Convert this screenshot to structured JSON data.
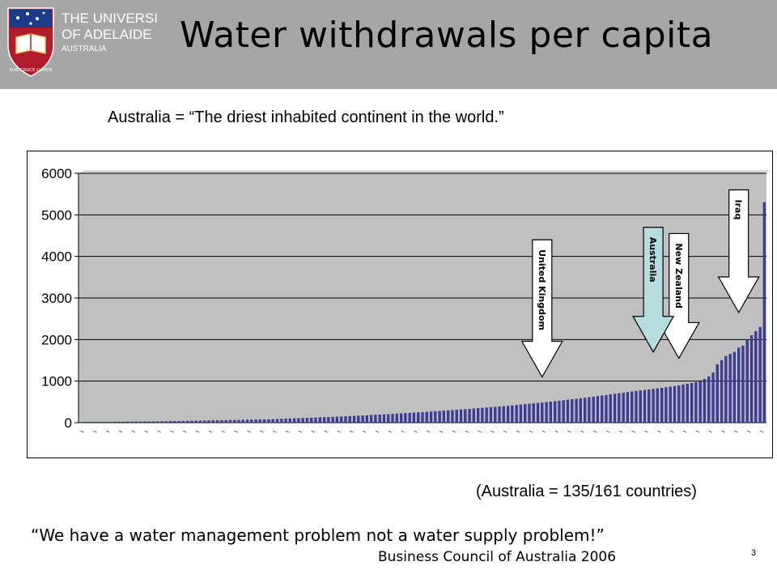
{
  "header": {
    "title": "Water withdrawals per capita",
    "logo": {
      "line1": "THE UNIVERSITY",
      "line2": "OF ADELAIDE",
      "line3": "AUSTRALIA",
      "motto": "SUB CRUCE LUMEN"
    }
  },
  "subtitle": "Australia  =  “The driest inhabited continent in the world.”",
  "rank_note": "(Australia = 135/161 countries)",
  "quote": "“We have a water management problem not a water supply problem!”",
  "quote_source": "Business Council of Australia 2006",
  "slide_number": "3",
  "colors": {
    "header_bg": "#a6a6a6",
    "plot_bg": "#c0c0c0",
    "bar_fill": "#3c3ca0",
    "arrow_white": "#ffffff",
    "arrow_australia": "#b6dde0"
  },
  "chart_data": {
    "type": "bar",
    "title": "",
    "xlabel": "",
    "ylabel": "",
    "ylim": [
      0,
      6000
    ],
    "yticks": [
      0,
      1000,
      2000,
      3000,
      4000,
      5000,
      6000
    ],
    "grid": true,
    "n_categories": 161,
    "values": [
      10,
      12,
      13,
      14,
      15,
      16,
      17,
      18,
      19,
      20,
      20,
      21,
      22,
      23,
      24,
      25,
      26,
      27,
      28,
      29,
      30,
      32,
      34,
      36,
      38,
      40,
      42,
      44,
      46,
      48,
      50,
      52,
      54,
      56,
      58,
      60,
      62,
      64,
      66,
      68,
      70,
      72,
      74,
      76,
      78,
      80,
      84,
      88,
      92,
      96,
      100,
      104,
      108,
      112,
      116,
      120,
      124,
      128,
      132,
      136,
      140,
      145,
      150,
      155,
      160,
      165,
      170,
      175,
      180,
      185,
      190,
      196,
      202,
      208,
      214,
      220,
      226,
      232,
      238,
      244,
      250,
      257,
      264,
      271,
      278,
      285,
      292,
      299,
      306,
      313,
      320,
      328,
      336,
      344,
      352,
      360,
      368,
      376,
      384,
      392,
      400,
      410,
      420,
      430,
      440,
      450,
      460,
      470,
      480,
      490,
      500,
      512,
      524,
      536,
      548,
      560,
      572,
      584,
      596,
      608,
      620,
      634,
      648,
      662,
      676,
      690,
      704,
      718,
      732,
      746,
      760,
      772,
      784,
      796,
      808,
      820,
      834,
      848,
      862,
      876,
      890,
      910,
      930,
      950,
      970,
      990,
      1050,
      1110,
      1200,
      1400,
      1500,
      1600,
      1650,
      1700,
      1800,
      1850,
      2000,
      2100,
      2200,
      2300,
      5300
    ],
    "annotations": [
      {
        "label": "United Kingdom",
        "index": 108,
        "style": "white",
        "arrow_top": 4400,
        "arrow_tip": 1100
      },
      {
        "label": "New Zealand",
        "index": 140,
        "style": "white",
        "arrow_top": 4550,
        "arrow_tip": 1550
      },
      {
        "label": "Australia",
        "index": 134,
        "style": "blue",
        "arrow_top": 4700,
        "arrow_tip": 1700
      },
      {
        "label": "Iraq",
        "index": 154,
        "style": "white",
        "arrow_top": 5600,
        "arrow_tip": 2650
      }
    ]
  }
}
